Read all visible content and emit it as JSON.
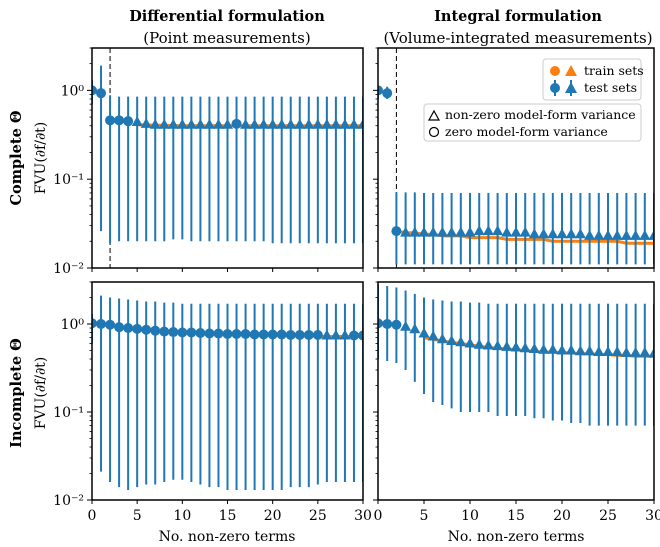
{
  "figure": {
    "columns": [
      {
        "title": "Differential formulation",
        "subtitle": "(Point measurements)"
      },
      {
        "title": "Integral formulation",
        "subtitle": "(Volume-integrated measurements)"
      }
    ],
    "rows": [
      {
        "label": "Complete Θ",
        "ylabel": "FVU(∂f/∂t)"
      },
      {
        "label": "Incomplete Θ",
        "ylabel": "FVU(∂f/∂t)"
      }
    ],
    "xlabel": "No. non-zero terms",
    "xticks": [
      "0",
      "5",
      "10",
      "15",
      "20",
      "25",
      "30"
    ],
    "yticks": [
      "10⁻²",
      "10⁻¹",
      "10⁰"
    ],
    "legend": {
      "train": "train sets",
      "test": "test sets",
      "nonzero": "non-zero model-form variance",
      "zero": "zero model-form variance"
    },
    "colors": {
      "train": "#ff7f0e",
      "test": "#1f77b4"
    }
  },
  "chart_data": [
    {
      "type": "scatter",
      "panel": "Differential / Complete",
      "y_scale": "log",
      "xlim": [
        0,
        30
      ],
      "ylim": [
        0.01,
        3
      ],
      "vline_x": 2,
      "zero_variance_points": [
        [
          0,
          1.0
        ],
        [
          1,
          0.93
        ],
        [
          2,
          0.46
        ],
        [
          3,
          0.46
        ],
        [
          4,
          0.45
        ],
        [
          16,
          0.42
        ]
      ],
      "series": [
        {
          "name": "test sets",
          "role": "test",
          "x": [
            0,
            1,
            2,
            3,
            4,
            5,
            6,
            7,
            8,
            9,
            10,
            11,
            12,
            13,
            14,
            15,
            16,
            17,
            18,
            19,
            20,
            21,
            22,
            23,
            24,
            25,
            26,
            27,
            28,
            29,
            30
          ],
          "y": [
            1.0,
            0.93,
            0.46,
            0.46,
            0.45,
            0.44,
            0.42,
            0.41,
            0.41,
            0.41,
            0.41,
            0.41,
            0.41,
            0.41,
            0.41,
            0.41,
            0.42,
            0.41,
            0.41,
            0.41,
            0.41,
            0.41,
            0.41,
            0.41,
            0.41,
            0.41,
            0.41,
            0.41,
            0.41,
            0.41,
            0.41
          ],
          "err_low": [
            0.7,
            0.026,
            0.019,
            0.02,
            0.02,
            0.02,
            0.02,
            0.02,
            0.02,
            0.021,
            0.021,
            0.02,
            0.02,
            0.02,
            0.02,
            0.02,
            0.02,
            0.02,
            0.02,
            0.02,
            0.019,
            0.019,
            0.019,
            0.019,
            0.019,
            0.019,
            0.019,
            0.019,
            0.019,
            0.019,
            0.019
          ],
          "err_high": [
            1.3,
            1.9,
            0.88,
            0.85,
            0.85,
            0.85,
            0.85,
            0.85,
            0.85,
            0.85,
            0.85,
            0.85,
            0.85,
            0.85,
            0.85,
            0.85,
            0.85,
            0.85,
            0.85,
            0.85,
            0.85,
            0.85,
            0.85,
            0.85,
            0.85,
            0.85,
            0.85,
            0.85,
            0.85,
            0.85,
            0.85
          ]
        },
        {
          "name": "train sets",
          "role": "train",
          "x": [
            5,
            10,
            15,
            20,
            25,
            30
          ],
          "y": [
            0.41,
            0.4,
            0.4,
            0.4,
            0.4,
            0.4
          ]
        }
      ]
    },
    {
      "type": "scatter",
      "panel": "Integral / Complete",
      "y_scale": "log",
      "xlim": [
        0,
        30
      ],
      "ylim": [
        0.01,
        3
      ],
      "vline_x": 2,
      "zero_variance_points": [
        [
          0,
          1.0
        ],
        [
          1,
          0.93
        ],
        [
          2,
          0.026
        ]
      ],
      "series": [
        {
          "name": "test sets",
          "role": "test",
          "x": [
            0,
            1,
            2,
            3,
            4,
            5,
            6,
            7,
            8,
            9,
            10,
            11,
            12,
            13,
            14,
            15,
            16,
            17,
            18,
            19,
            20,
            21,
            22,
            23,
            24,
            25,
            26,
            27,
            28,
            29,
            30
          ],
          "y": [
            1.0,
            0.93,
            0.026,
            0.025,
            0.025,
            0.025,
            0.025,
            0.025,
            0.025,
            0.025,
            0.025,
            0.026,
            0.026,
            0.026,
            0.025,
            0.025,
            0.025,
            0.024,
            0.024,
            0.024,
            0.024,
            0.024,
            0.024,
            0.023,
            0.023,
            0.023,
            0.023,
            0.023,
            0.023,
            0.023,
            0.023
          ],
          "err_low": [
            0.8,
            0.8,
            0.011,
            0.011,
            0.011,
            0.011,
            0.011,
            0.011,
            0.011,
            0.011,
            0.011,
            0.011,
            0.011,
            0.011,
            0.011,
            0.011,
            0.011,
            0.011,
            0.011,
            0.011,
            0.011,
            0.011,
            0.011,
            0.011,
            0.011,
            0.011,
            0.011,
            0.011,
            0.011,
            0.011,
            0.011
          ],
          "err_high": [
            1.1,
            1.1,
            0.071,
            0.071,
            0.071,
            0.07,
            0.07,
            0.07,
            0.07,
            0.07,
            0.07,
            0.07,
            0.07,
            0.07,
            0.07,
            0.07,
            0.07,
            0.07,
            0.07,
            0.07,
            0.07,
            0.07,
            0.07,
            0.07,
            0.07,
            0.07,
            0.07,
            0.07,
            0.07,
            0.07,
            0.07
          ]
        },
        {
          "name": "train sets",
          "role": "train",
          "x": [
            2,
            3,
            4,
            5,
            6,
            7,
            8,
            9,
            10,
            11,
            12,
            13,
            14,
            15,
            16,
            17,
            18,
            19,
            20,
            21,
            22,
            23,
            24,
            25,
            26,
            27,
            28,
            29,
            30
          ],
          "y": [
            0.026,
            0.025,
            0.025,
            0.024,
            0.024,
            0.023,
            0.023,
            0.023,
            0.022,
            0.022,
            0.022,
            0.022,
            0.021,
            0.021,
            0.021,
            0.021,
            0.021,
            0.02,
            0.02,
            0.02,
            0.02,
            0.02,
            0.02,
            0.02,
            0.02,
            0.019,
            0.019,
            0.019,
            0.019
          ]
        }
      ]
    },
    {
      "type": "scatter",
      "panel": "Differential / Incomplete",
      "y_scale": "log",
      "xlim": [
        0,
        30
      ],
      "ylim": [
        0.01,
        3
      ],
      "zero_variance_points": [
        [
          0,
          1.02
        ],
        [
          1,
          1.0
        ],
        [
          2,
          0.98
        ],
        [
          3,
          0.92
        ],
        [
          4,
          0.9
        ],
        [
          5,
          0.88
        ],
        [
          6,
          0.86
        ],
        [
          7,
          0.84
        ],
        [
          8,
          0.82
        ],
        [
          9,
          0.81
        ],
        [
          10,
          0.8
        ],
        [
          11,
          0.8
        ],
        [
          12,
          0.79
        ],
        [
          13,
          0.78
        ],
        [
          14,
          0.78
        ],
        [
          15,
          0.77
        ],
        [
          16,
          0.77
        ],
        [
          17,
          0.77
        ],
        [
          18,
          0.76
        ],
        [
          19,
          0.76
        ],
        [
          20,
          0.76
        ],
        [
          21,
          0.76
        ],
        [
          22,
          0.75
        ],
        [
          23,
          0.75
        ],
        [
          24,
          0.75
        ],
        [
          25,
          0.75
        ],
        [
          29,
          0.74
        ],
        [
          30,
          0.74
        ]
      ],
      "series": [
        {
          "name": "test sets",
          "role": "test",
          "x": [
            0,
            1,
            2,
            3,
            4,
            5,
            6,
            7,
            8,
            9,
            10,
            11,
            12,
            13,
            14,
            15,
            16,
            17,
            18,
            19,
            20,
            21,
            22,
            23,
            24,
            25,
            26,
            27,
            28,
            29,
            30
          ],
          "y": [
            1.02,
            1.0,
            0.98,
            0.92,
            0.9,
            0.88,
            0.86,
            0.84,
            0.82,
            0.81,
            0.8,
            0.8,
            0.79,
            0.78,
            0.78,
            0.77,
            0.77,
            0.77,
            0.76,
            0.76,
            0.76,
            0.76,
            0.75,
            0.75,
            0.75,
            0.75,
            0.74,
            0.74,
            0.74,
            0.74,
            0.74
          ],
          "err_low": [
            0.6,
            0.021,
            0.016,
            0.014,
            0.013,
            0.014,
            0.015,
            0.015,
            0.016,
            0.017,
            0.017,
            0.016,
            0.015,
            0.014,
            0.014,
            0.013,
            0.013,
            0.013,
            0.013,
            0.013,
            0.013,
            0.013,
            0.014,
            0.014,
            0.014,
            0.015,
            0.016,
            0.016,
            0.016,
            0.016,
            0.016
          ],
          "err_high": [
            1.3,
            2.1,
            2.0,
            1.95,
            1.9,
            1.85,
            1.8,
            1.8,
            1.75,
            1.75,
            1.7,
            1.7,
            1.7,
            1.7,
            1.7,
            1.7,
            1.7,
            1.7,
            1.7,
            1.7,
            1.7,
            1.7,
            1.7,
            1.7,
            1.7,
            1.7,
            1.7,
            1.7,
            1.7,
            1.7,
            1.7
          ]
        },
        {
          "name": "train sets",
          "role": "train",
          "x": [
            25,
            26,
            27,
            28,
            29,
            30
          ],
          "y": [
            0.73,
            0.72,
            0.72,
            0.72,
            0.72,
            0.72
          ]
        }
      ]
    },
    {
      "type": "scatter",
      "panel": "Integral / Incomplete",
      "y_scale": "log",
      "xlim": [
        0,
        30
      ],
      "ylim": [
        0.01,
        3
      ],
      "zero_variance_points": [
        [
          0,
          1.02
        ],
        [
          1,
          1.0
        ],
        [
          2,
          0.98
        ]
      ],
      "series": [
        {
          "name": "test sets",
          "role": "test",
          "x": [
            0,
            1,
            2,
            3,
            4,
            5,
            6,
            7,
            8,
            9,
            10,
            11,
            12,
            13,
            14,
            15,
            16,
            17,
            18,
            19,
            20,
            21,
            22,
            23,
            24,
            25,
            26,
            27,
            28,
            29,
            30
          ],
          "y": [
            1.02,
            1.0,
            0.98,
            0.93,
            0.87,
            0.78,
            0.72,
            0.67,
            0.64,
            0.62,
            0.6,
            0.58,
            0.57,
            0.56,
            0.55,
            0.54,
            0.53,
            0.52,
            0.51,
            0.51,
            0.5,
            0.5,
            0.49,
            0.49,
            0.48,
            0.48,
            0.48,
            0.47,
            0.47,
            0.47,
            0.46
          ],
          "err_low": [
            0.4,
            0.38,
            0.36,
            0.3,
            0.22,
            0.16,
            0.13,
            0.12,
            0.11,
            0.1,
            0.1,
            0.1,
            0.1,
            0.09,
            0.09,
            0.09,
            0.09,
            0.085,
            0.085,
            0.08,
            0.08,
            0.075,
            0.075,
            0.07,
            0.07,
            0.07,
            0.07,
            0.07,
            0.07,
            0.07,
            0.07
          ],
          "err_high": [
            2.8,
            2.7,
            2.6,
            2.4,
            2.2,
            2.0,
            1.9,
            1.85,
            1.8,
            1.8,
            1.75,
            1.75,
            1.7,
            1.7,
            1.7,
            1.7,
            1.7,
            1.7,
            1.7,
            1.7,
            1.7,
            1.7,
            1.7,
            1.7,
            1.7,
            1.7,
            1.7,
            1.7,
            1.7,
            1.7,
            1.7
          ]
        },
        {
          "name": "train sets",
          "role": "train",
          "x": [
            5,
            6,
            7,
            8,
            9,
            10,
            11,
            12,
            13,
            14,
            15,
            16,
            17,
            18,
            19,
            20,
            21,
            22,
            23,
            24,
            25,
            26,
            27,
            28,
            29,
            30
          ],
          "y": [
            0.7,
            0.67,
            0.64,
            0.62,
            0.6,
            0.58,
            0.56,
            0.54,
            0.53,
            0.52,
            0.51,
            0.5,
            0.49,
            0.48,
            0.48,
            0.47,
            0.47,
            0.46,
            0.46,
            0.45,
            0.45,
            0.44,
            0.44,
            0.43,
            0.43,
            0.43
          ]
        }
      ]
    }
  ]
}
